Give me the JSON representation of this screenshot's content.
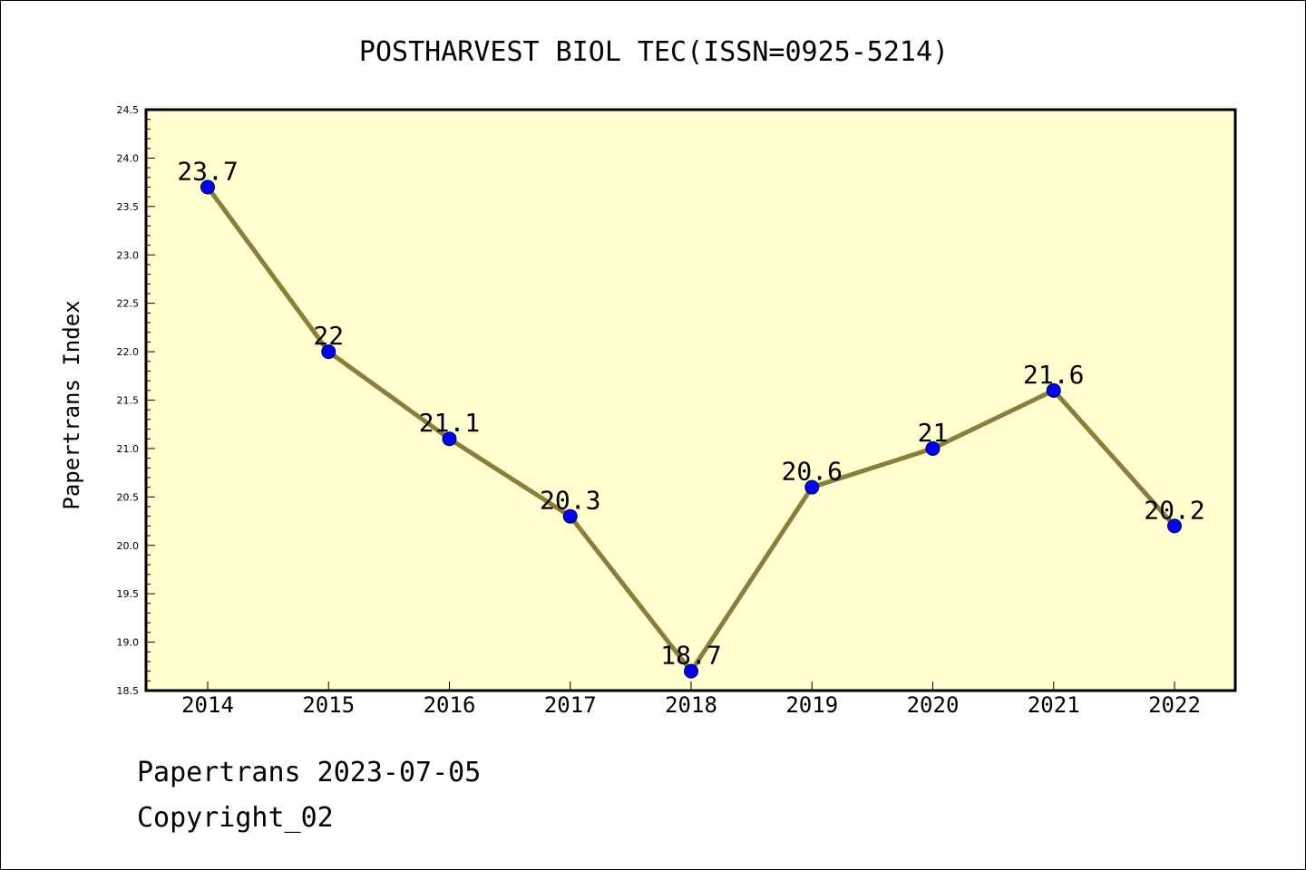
{
  "chart_data": {
    "type": "line",
    "title": "POSTHARVEST BIOL TEC(ISSN=0925-5214)",
    "xlabel": "",
    "ylabel": "Papertrans Index",
    "categories": [
      "2014",
      "2015",
      "2016",
      "2017",
      "2018",
      "2019",
      "2020",
      "2021",
      "2022"
    ],
    "values": [
      23.7,
      22,
      21.1,
      20.3,
      18.7,
      20.6,
      21,
      21.6,
      20.2
    ],
    "data_labels": [
      "23.7",
      "22",
      "21.1",
      "20.3",
      "18.7",
      "20.6",
      "21",
      "21.6",
      "20.2"
    ],
    "ylim": [
      18.5,
      24.5
    ],
    "yticks": [
      "18.5",
      "19.0",
      "19.5",
      "20.0",
      "20.5",
      "21.0",
      "21.5",
      "22.0",
      "22.5",
      "23.0",
      "23.5",
      "24.0",
      "24.5"
    ],
    "grid": false,
    "colors": {
      "plot_background": "#ffffd0",
      "line": "#8b7d3a",
      "marker": "#0000ff"
    }
  },
  "footer": {
    "line1": "Papertrans 2023-07-05",
    "line2": "Copyright_02"
  }
}
